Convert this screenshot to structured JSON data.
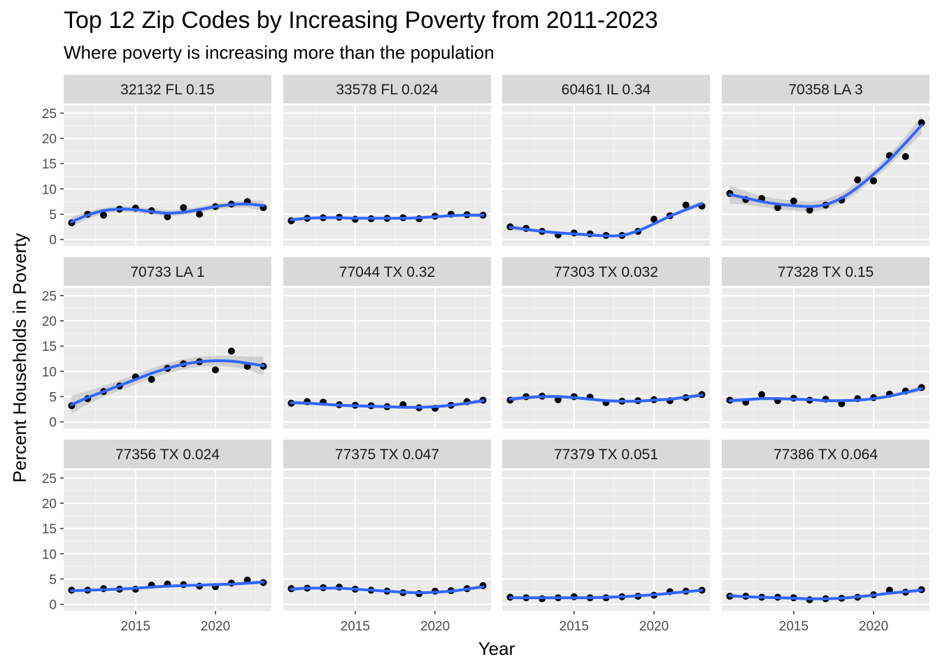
{
  "chart_data": {
    "type": "scatter",
    "title": "Top 12 Zip Codes by Increasing Poverty from 2011-2023",
    "subtitle": "Where poverty is increasing more than the population",
    "xlabel": "Year",
    "ylabel": "Percent Households in Poverty",
    "xlim": [
      2010.5,
      2023.5
    ],
    "ylim": [
      -1.3,
      26.5
    ],
    "x_ticks": [
      2015,
      2020
    ],
    "y_ticks": [
      0,
      5,
      10,
      15,
      20,
      25
    ],
    "grid": true,
    "colors": {
      "panel_bg": "#ebebeb",
      "strip_bg": "#d9d9d9",
      "grid_major": "#ffffff",
      "grid_minor": "#f5f5f5",
      "point": "#000000",
      "smooth_line": "#3366ff",
      "ribbon": "#bdbdbd"
    },
    "x": [
      2011,
      2012,
      2013,
      2014,
      2015,
      2016,
      2017,
      2018,
      2019,
      2020,
      2021,
      2022,
      2023
    ],
    "panels": [
      {
        "label": "32132 FL 0.15",
        "points": [
          3.3,
          5.0,
          4.8,
          6.0,
          6.2,
          5.7,
          4.5,
          6.3,
          5.0,
          6.5,
          7.0,
          7.5,
          6.3
        ],
        "smooth": [
          3.5,
          4.8,
          5.7,
          6.0,
          5.9,
          5.5,
          5.2,
          5.4,
          5.9,
          6.5,
          6.9,
          7.0,
          6.7
        ],
        "ribbon_half": [
          1.0,
          0.7,
          0.6,
          0.6,
          0.6,
          0.6,
          0.6,
          0.6,
          0.6,
          0.6,
          0.6,
          0.7,
          1.0
        ]
      },
      {
        "label": "33578 FL 0.024",
        "points": [
          3.7,
          4.2,
          4.3,
          4.4,
          4.0,
          4.1,
          4.2,
          4.3,
          4.1,
          4.6,
          5.0,
          4.9,
          4.8
        ],
        "smooth": [
          3.9,
          4.2,
          4.3,
          4.3,
          4.2,
          4.2,
          4.2,
          4.2,
          4.3,
          4.5,
          4.7,
          4.8,
          4.8
        ],
        "ribbon_half": [
          0.4,
          0.3,
          0.2,
          0.2,
          0.2,
          0.2,
          0.2,
          0.2,
          0.2,
          0.2,
          0.2,
          0.3,
          0.4
        ]
      },
      {
        "label": "60461 IL 0.34",
        "points": [
          2.5,
          2.2,
          1.6,
          0.9,
          1.3,
          1.1,
          0.8,
          0.8,
          1.6,
          4.0,
          4.7,
          6.8,
          6.6
        ],
        "smooth": [
          2.4,
          2.0,
          1.6,
          1.3,
          1.1,
          0.9,
          0.7,
          0.8,
          1.7,
          3.1,
          4.6,
          5.9,
          7.1
        ],
        "ribbon_half": [
          0.6,
          0.4,
          0.3,
          0.3,
          0.3,
          0.3,
          0.3,
          0.3,
          0.3,
          0.3,
          0.3,
          0.4,
          0.6
        ]
      },
      {
        "label": "70358 LA 3",
        "points": [
          9.1,
          7.9,
          8.1,
          6.3,
          7.6,
          5.8,
          6.8,
          7.8,
          11.8,
          11.6,
          16.6,
          16.4,
          23.1
        ],
        "smooth": [
          8.9,
          8.2,
          7.5,
          7.0,
          6.7,
          6.5,
          6.9,
          8.2,
          10.3,
          12.9,
          15.8,
          19.1,
          22.6
        ],
        "ribbon_half": [
          1.8,
          1.3,
          1.1,
          1.0,
          1.0,
          1.0,
          1.0,
          1.0,
          1.0,
          1.0,
          1.1,
          1.3,
          1.8
        ]
      },
      {
        "label": "70733 LA 1",
        "points": [
          3.2,
          4.6,
          6.0,
          7.1,
          8.9,
          8.4,
          10.6,
          11.5,
          11.9,
          10.3,
          14.0,
          11.0,
          11.0
        ],
        "smooth": [
          3.4,
          4.8,
          6.0,
          7.2,
          8.4,
          9.6,
          10.6,
          11.4,
          11.9,
          12.1,
          12.0,
          11.6,
          11.1
        ],
        "ribbon_half": [
          1.8,
          1.3,
          1.1,
          1.0,
          1.0,
          1.0,
          1.0,
          1.0,
          1.0,
          1.0,
          1.1,
          1.3,
          1.8
        ]
      },
      {
        "label": "77044 TX 0.32",
        "points": [
          3.7,
          4.0,
          3.9,
          3.4,
          3.3,
          3.2,
          3.0,
          3.4,
          2.8,
          2.7,
          3.3,
          4.0,
          4.3
        ],
        "smooth": [
          3.8,
          3.7,
          3.5,
          3.3,
          3.2,
          3.1,
          3.0,
          2.9,
          2.9,
          3.0,
          3.3,
          3.7,
          4.2
        ],
        "ribbon_half": [
          0.5,
          0.3,
          0.3,
          0.3,
          0.3,
          0.3,
          0.3,
          0.3,
          0.3,
          0.3,
          0.3,
          0.3,
          0.5
        ]
      },
      {
        "label": "77303 TX 0.032",
        "points": [
          4.3,
          5.0,
          5.1,
          4.4,
          5.0,
          4.9,
          3.8,
          4.1,
          4.2,
          4.4,
          4.2,
          4.8,
          5.4
        ],
        "smooth": [
          4.5,
          4.8,
          5.0,
          5.0,
          4.8,
          4.5,
          4.2,
          4.1,
          4.1,
          4.3,
          4.5,
          4.9,
          5.3
        ],
        "ribbon_half": [
          0.5,
          0.4,
          0.3,
          0.3,
          0.3,
          0.3,
          0.3,
          0.3,
          0.3,
          0.3,
          0.3,
          0.4,
          0.5
        ]
      },
      {
        "label": "77328 TX 0.15",
        "points": [
          4.3,
          3.9,
          5.4,
          4.2,
          4.7,
          4.3,
          4.5,
          3.6,
          4.6,
          4.8,
          5.5,
          6.1,
          6.8
        ],
        "smooth": [
          4.2,
          4.4,
          4.6,
          4.6,
          4.5,
          4.4,
          4.2,
          4.2,
          4.3,
          4.6,
          5.1,
          5.8,
          6.6
        ],
        "ribbon_half": [
          0.6,
          0.4,
          0.3,
          0.3,
          0.3,
          0.3,
          0.3,
          0.3,
          0.3,
          0.3,
          0.3,
          0.4,
          0.6
        ]
      },
      {
        "label": "77356 TX 0.024",
        "points": [
          2.8,
          2.8,
          3.1,
          3.0,
          3.0,
          3.8,
          4.0,
          3.9,
          3.6,
          3.5,
          4.2,
          4.8,
          4.3
        ],
        "smooth": [
          2.7,
          2.8,
          2.9,
          3.0,
          3.2,
          3.4,
          3.6,
          3.7,
          3.8,
          3.9,
          4.0,
          4.2,
          4.4
        ],
        "ribbon_half": [
          0.4,
          0.3,
          0.2,
          0.2,
          0.2,
          0.2,
          0.2,
          0.2,
          0.2,
          0.2,
          0.2,
          0.3,
          0.4
        ]
      },
      {
        "label": "77375 TX 0.047",
        "points": [
          3.1,
          3.2,
          3.3,
          3.4,
          3.0,
          2.8,
          2.6,
          2.3,
          2.1,
          2.6,
          2.7,
          3.1,
          3.7
        ],
        "smooth": [
          3.0,
          3.2,
          3.2,
          3.2,
          3.0,
          2.8,
          2.6,
          2.4,
          2.3,
          2.4,
          2.6,
          3.0,
          3.5
        ],
        "ribbon_half": [
          0.4,
          0.3,
          0.2,
          0.2,
          0.2,
          0.2,
          0.2,
          0.2,
          0.2,
          0.2,
          0.2,
          0.3,
          0.4
        ]
      },
      {
        "label": "77379 TX 0.051",
        "points": [
          1.4,
          1.3,
          1.1,
          1.3,
          1.5,
          1.3,
          1.3,
          1.5,
          1.6,
          1.8,
          2.5,
          2.6,
          2.8
        ],
        "smooth": [
          1.3,
          1.3,
          1.3,
          1.3,
          1.3,
          1.3,
          1.4,
          1.5,
          1.7,
          1.9,
          2.2,
          2.5,
          2.8
        ],
        "ribbon_half": [
          0.3,
          0.2,
          0.2,
          0.2,
          0.2,
          0.2,
          0.2,
          0.2,
          0.2,
          0.2,
          0.2,
          0.2,
          0.3
        ]
      },
      {
        "label": "77386 TX 0.064",
        "points": [
          1.6,
          1.6,
          1.4,
          1.4,
          1.3,
          0.9,
          1.1,
          1.2,
          1.4,
          1.9,
          2.8,
          2.4,
          2.9
        ],
        "smooth": [
          1.7,
          1.5,
          1.4,
          1.3,
          1.2,
          1.1,
          1.1,
          1.2,
          1.5,
          1.8,
          2.2,
          2.5,
          2.8
        ],
        "ribbon_half": [
          0.4,
          0.3,
          0.2,
          0.2,
          0.2,
          0.2,
          0.2,
          0.2,
          0.2,
          0.2,
          0.2,
          0.3,
          0.4
        ]
      }
    ]
  }
}
